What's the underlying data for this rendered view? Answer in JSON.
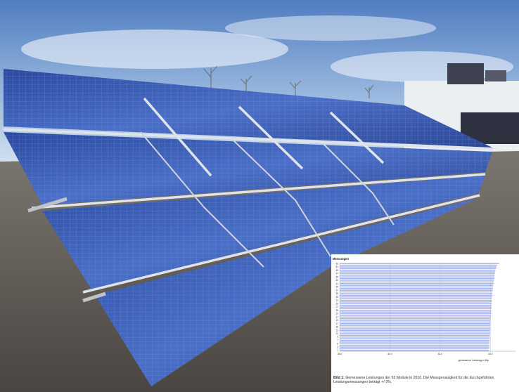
{
  "scene": {
    "subject": "rooftop-solar-array",
    "colors": {
      "sky_top": "#5b86c4",
      "sky_bottom": "#dbe7f3",
      "panel": "#2c4fa8",
      "panel_light": "#5f86d8",
      "frame": "#d9dde3",
      "roof": "#5a5551",
      "building": "#eef0f2"
    }
  },
  "inset_chart": {
    "chart_data": {
      "type": "bar",
      "orientation": "horizontal",
      "title": "Messungen",
      "xlabel": "gemessene Leistung in Wp",
      "ylabel": "",
      "bar_color": "#a9b6ee",
      "xlim": [
        28.0,
        35.0
      ],
      "xticks": [
        "28.0",
        "30.0",
        "32.0",
        "34.0"
      ],
      "yticks": [
        "1",
        "3",
        "5",
        "7",
        "9",
        "11",
        "13",
        "15",
        "17",
        "19",
        "21",
        "23",
        "25",
        "27",
        "29",
        "31",
        "33",
        "35",
        "37",
        "39",
        "41",
        "43",
        "45",
        "47",
        "49",
        "51",
        "53"
      ],
      "categories": [
        "1",
        "2",
        "3",
        "4",
        "5",
        "6",
        "7",
        "8",
        "9",
        "10",
        "11",
        "12",
        "13",
        "14",
        "15",
        "16",
        "17",
        "18",
        "19",
        "20",
        "21",
        "22",
        "23",
        "24",
        "25",
        "26",
        "27",
        "28",
        "29",
        "30",
        "31",
        "32",
        "33",
        "34",
        "35",
        "36",
        "37",
        "38",
        "39",
        "40",
        "41",
        "42",
        "43",
        "44",
        "45",
        "46",
        "47",
        "48",
        "49",
        "50",
        "51",
        "52",
        "53"
      ],
      "values": [
        33.95,
        33.95,
        33.96,
        33.96,
        33.97,
        33.97,
        33.97,
        33.98,
        33.98,
        33.98,
        33.99,
        33.99,
        33.99,
        34.0,
        34.0,
        34.0,
        34.01,
        34.01,
        34.01,
        34.02,
        34.02,
        34.02,
        34.03,
        34.03,
        34.03,
        34.04,
        34.04,
        34.05,
        34.05,
        34.05,
        34.06,
        34.06,
        34.07,
        34.07,
        34.08,
        34.08,
        34.09,
        34.1,
        34.1,
        34.11,
        34.12,
        34.13,
        34.14,
        34.15,
        34.16,
        34.17,
        34.18,
        34.19,
        34.2,
        34.22,
        34.24,
        34.27,
        34.35
      ]
    },
    "caption_lead": "Bild 1:",
    "caption_text": "Gemessene Leistungen der 53 Module in 2010. Die Messgenauigkeit für die durchgeführten Leistungsmessungen beträgt +/-3%."
  }
}
